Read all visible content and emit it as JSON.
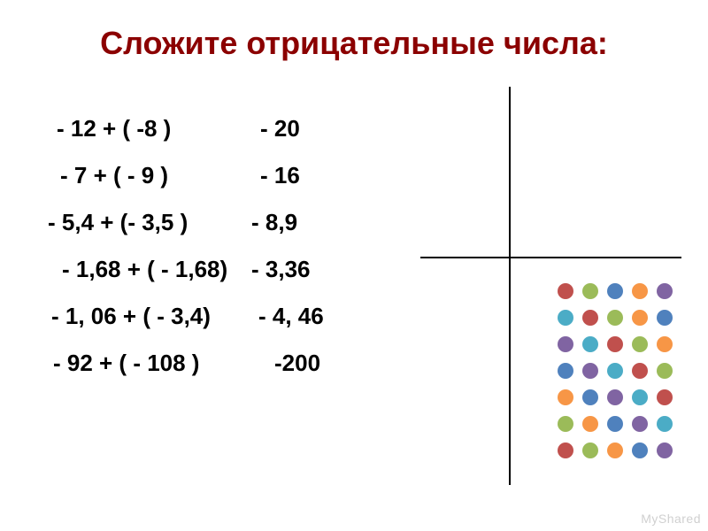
{
  "title": "Сложите отрицательные числа:",
  "title_color": "#8b0000",
  "title_fontsize": 36,
  "text_color": "#000000",
  "text_fontsize": 26,
  "background_color": "#ffffff",
  "axis_color": "#000000",
  "problems": [
    {
      "expr": "- 12 + ( -8 )",
      "ans": "- 20"
    },
    {
      "expr": "- 7 + ( - 9 )",
      "ans": "- 16"
    },
    {
      "expr": "- 5,4 + (- 3,5 )",
      "ans": "- 8,9"
    },
    {
      "expr": "- 1,68 + ( - 1,68)",
      "ans": "- 3,36"
    },
    {
      "expr": "- 1, 06 + ( - 3,4)",
      "ans": "- 4, 46"
    },
    {
      "expr": "- 92 + ( - 108 )",
      "ans": "-200"
    }
  ],
  "dot_colors": {
    "row1": [
      "#c0504d",
      "#9bbb59",
      "#4f81bd",
      "#f79646",
      "#8064a2"
    ],
    "row2": [
      "#4bacc6",
      "#c0504d",
      "#9bbb59",
      "#f79646",
      "#4f81bd"
    ],
    "row3": [
      "#8064a2",
      "#4bacc6",
      "#c0504d",
      "#9bbb59",
      "#f79646"
    ],
    "row4": [
      "#4f81bd",
      "#8064a2",
      "#4bacc6",
      "#c0504d",
      "#9bbb59"
    ],
    "row5": [
      "#f79646",
      "#4f81bd",
      "#8064a2",
      "#4bacc6",
      "#c0504d"
    ],
    "row6": [
      "#9bbb59",
      "#f79646",
      "#4f81bd",
      "#8064a2",
      "#4bacc6"
    ],
    "row7": [
      "#c0504d",
      "#9bbb59",
      "#f79646",
      "#4f81bd",
      "#8064a2"
    ]
  },
  "dot_size": 18,
  "watermark": "MyShared"
}
